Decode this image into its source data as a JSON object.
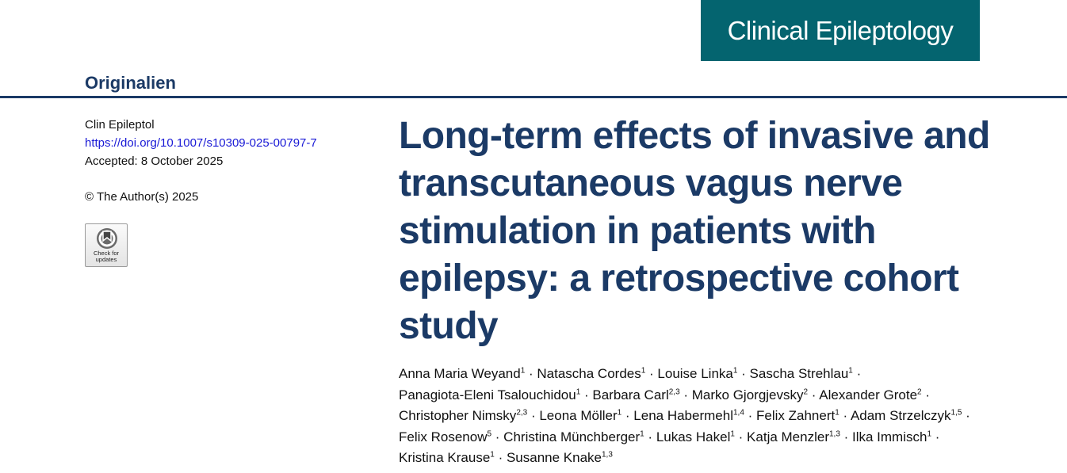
{
  "header": {
    "journal_name": "Clinical Epileptology",
    "section": "Originalien",
    "banner_color": "#04646f",
    "accent_color": "#1b3a66"
  },
  "meta": {
    "journal_abbrev": "Clin Epileptol",
    "doi": "https://doi.org/10.1007/s10309-025-00797-7",
    "accepted": "Accepted: 8 October 2025",
    "copyright": "© The Author(s) 2025",
    "badge_line1": "Check for",
    "badge_line2": "updates"
  },
  "article": {
    "title": "Long-term effects of invasive and transcutaneous vagus nerve stimulation in patients with epilepsy: a retrospective cohort study",
    "authors": [
      {
        "name": "Anna Maria Weyand",
        "aff": "1"
      },
      {
        "name": "Natascha Cordes",
        "aff": "1"
      },
      {
        "name": "Louise Linka",
        "aff": "1"
      },
      {
        "name": "Sascha Strehlau",
        "aff": "1"
      },
      {
        "name": "Panagiota-Eleni Tsalouchidou",
        "aff": "1"
      },
      {
        "name": "Barbara Carl",
        "aff": "2,3"
      },
      {
        "name": "Marko Gjorgjevsky",
        "aff": "2"
      },
      {
        "name": "Alexander Grote",
        "aff": "2"
      },
      {
        "name": "Christopher Nimsky",
        "aff": "2,3"
      },
      {
        "name": "Leona Möller",
        "aff": "1"
      },
      {
        "name": "Lena Habermehl",
        "aff": "1,4"
      },
      {
        "name": "Felix Zahnert",
        "aff": "1"
      },
      {
        "name": "Adam Strzelczyk",
        "aff": "1,5"
      },
      {
        "name": "Felix Rosenow",
        "aff": "5"
      },
      {
        "name": "Christina Münchberger",
        "aff": "1"
      },
      {
        "name": "Lukas Hakel",
        "aff": "1"
      },
      {
        "name": "Katja Menzler",
        "aff": "1,3"
      },
      {
        "name": "Ilka Immisch",
        "aff": "1"
      },
      {
        "name": "Kristina Krause",
        "aff": "1"
      },
      {
        "name": "Susanne Knake",
        "aff": "1,3"
      }
    ]
  }
}
